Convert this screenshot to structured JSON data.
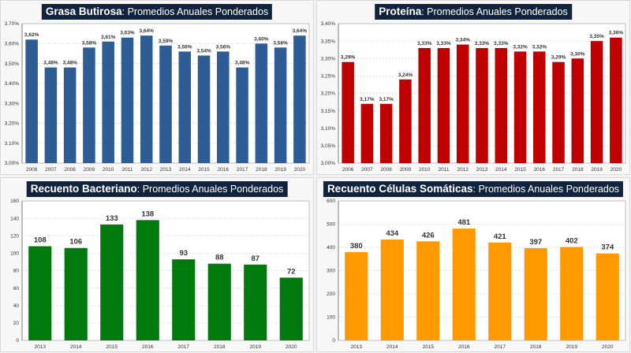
{
  "chart_data": [
    {
      "id": "grasa",
      "type": "bar",
      "title_bold": "Grasa Butirosa",
      "title_rest": ": Promedios Anuales Ponderados",
      "categories": [
        "2006",
        "2007",
        "2008",
        "2009",
        "2010",
        "2011",
        "2012",
        "2013",
        "2014",
        "2015",
        "2016",
        "2017",
        "2018",
        "2019",
        "2020"
      ],
      "values": [
        3.62,
        3.48,
        3.48,
        3.58,
        3.61,
        3.63,
        3.64,
        3.59,
        3.56,
        3.54,
        3.56,
        3.48,
        3.6,
        3.58,
        3.64
      ],
      "labels": [
        "3,62%",
        "3,48%",
        "3,48%",
        "3,58%",
        "3,61%",
        "3,63%",
        "3,64%",
        "3,59%",
        "3,56%",
        "3,54%",
        "3,56%",
        "3,48%",
        "3,60%",
        "3,58%",
        "3,64%"
      ],
      "yticks": [
        3.0,
        3.1,
        3.2,
        3.3,
        3.4,
        3.5,
        3.6,
        3.7
      ],
      "ytick_labels": [
        "3,00%",
        "3,10%",
        "3,20%",
        "3,30%",
        "3,40%",
        "3,50%",
        "3,60%",
        "3,70%"
      ],
      "ylim": [
        3.0,
        3.7
      ],
      "color": "#2e5c94",
      "xlabel": "",
      "ylabel": "",
      "grid": true,
      "legend": "none"
    },
    {
      "id": "proteina",
      "type": "bar",
      "title_bold": "Proteína",
      "title_rest": ": Promedios Anuales Ponderados",
      "categories": [
        "2006",
        "2007",
        "2008",
        "2009",
        "2010",
        "2011",
        "2012",
        "2013",
        "2014",
        "2015",
        "2016",
        "2017",
        "2018",
        "2019",
        "2020"
      ],
      "values": [
        3.29,
        3.17,
        3.17,
        3.24,
        3.33,
        3.33,
        3.34,
        3.33,
        3.33,
        3.32,
        3.32,
        3.29,
        3.3,
        3.35,
        3.36
      ],
      "labels": [
        "3,29%",
        "3,17%",
        "3,17%",
        "3,24%",
        "3,33%",
        "3,33%",
        "3,34%",
        "3,33%",
        "3,33%",
        "3,32%",
        "3,32%",
        "3,29%",
        "3,30%",
        "3,35%",
        "3,36%"
      ],
      "yticks": [
        3.0,
        3.05,
        3.1,
        3.15,
        3.2,
        3.25,
        3.3,
        3.35,
        3.4
      ],
      "ytick_labels": [
        "3,00%",
        "3,05%",
        "3,10%",
        "3,15%",
        "3,20%",
        "3,25%",
        "3,30%",
        "3,35%",
        "3,40%"
      ],
      "ylim": [
        3.0,
        3.4
      ],
      "color": "#c00000",
      "xlabel": "",
      "ylabel": "",
      "grid": true,
      "legend": "none"
    },
    {
      "id": "bacteriano",
      "type": "bar",
      "title_bold": "Recuento Bacteriano",
      "title_rest": ": Promedios Anuales Ponderados",
      "categories": [
        "2013",
        "2014",
        "2015",
        "2016",
        "2017",
        "2018",
        "2019",
        "2020"
      ],
      "values": [
        108,
        106,
        133,
        138,
        93,
        88,
        87,
        72
      ],
      "labels": [
        "108",
        "106",
        "133",
        "138",
        "93",
        "88",
        "87",
        "72"
      ],
      "yticks": [
        0,
        20,
        40,
        60,
        80,
        100,
        120,
        140,
        160
      ],
      "ytick_labels": [
        "0",
        "20",
        "40",
        "60",
        "80",
        "100",
        "120",
        "140",
        "160"
      ],
      "ylim": [
        0,
        160
      ],
      "color": "#007a0c",
      "xlabel": "",
      "ylabel": "",
      "grid": true,
      "legend": "none"
    },
    {
      "id": "somaticas",
      "type": "bar",
      "title_bold": "Recuento Células Somáticas",
      "title_rest": ": Promedios Anuales Ponderados",
      "categories": [
        "2013",
        "2014",
        "2015",
        "2016",
        "2017",
        "2018",
        "2019",
        "2020"
      ],
      "values": [
        380,
        434,
        426,
        481,
        421,
        397,
        402,
        374
      ],
      "labels": [
        "380",
        "434",
        "426",
        "481",
        "421",
        "397",
        "402",
        "374"
      ],
      "yticks": [
        0,
        100,
        200,
        300,
        400,
        500,
        600
      ],
      "ytick_labels": [
        "0",
        "100",
        "200",
        "300",
        "400",
        "500",
        "600"
      ],
      "ylim": [
        0,
        600
      ],
      "color": "#ff9900",
      "xlabel": "",
      "ylabel": "",
      "grid": true,
      "legend": "none"
    }
  ]
}
